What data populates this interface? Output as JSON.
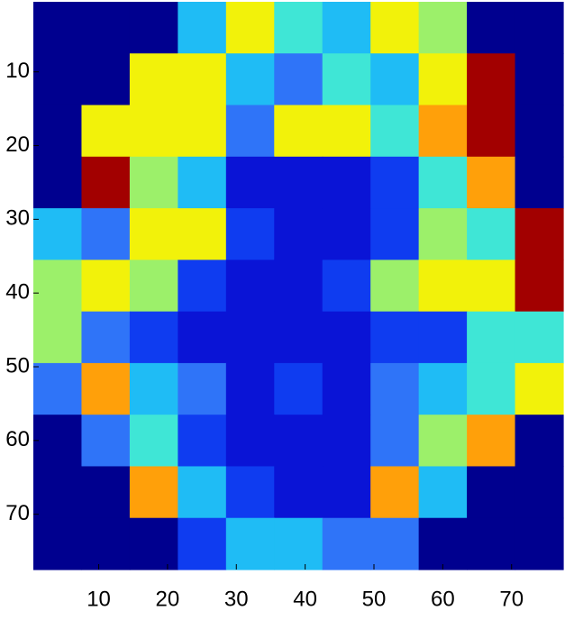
{
  "chart_data": {
    "type": "heatmap",
    "x": [
      4,
      11,
      18,
      25,
      32,
      39,
      46,
      53,
      60,
      67,
      74
    ],
    "y": [
      4,
      11,
      18,
      25,
      32,
      39,
      46,
      53,
      60,
      67,
      74
    ],
    "values": [
      [
        0,
        0,
        0,
        4,
        7,
        5,
        4,
        7,
        6,
        0,
        0
      ],
      [
        0,
        0,
        7,
        7,
        4,
        3,
        5,
        4,
        7,
        10,
        0
      ],
      [
        0,
        7,
        7,
        7,
        3,
        7,
        7,
        5,
        8,
        10,
        0
      ],
      [
        0,
        10,
        6,
        4,
        1,
        1,
        1,
        2,
        5,
        8,
        0
      ],
      [
        4,
        3,
        7,
        7,
        2,
        1,
        1,
        2,
        6,
        5,
        10
      ],
      [
        6,
        7,
        6,
        2,
        1,
        1,
        2,
        6,
        7,
        7,
        10
      ],
      [
        6,
        3,
        2,
        1,
        1,
        1,
        1,
        2,
        2,
        5,
        5
      ],
      [
        3,
        8,
        4,
        3,
        1,
        2,
        1,
        3,
        4,
        5,
        7
      ],
      [
        0,
        3,
        5,
        2,
        1,
        1,
        1,
        3,
        6,
        8,
        0
      ],
      [
        0,
        0,
        8,
        4,
        2,
        1,
        1,
        8,
        4,
        0,
        0
      ],
      [
        0,
        0,
        0,
        2,
        4,
        4,
        3,
        3,
        0,
        0,
        0
      ]
    ],
    "clim": [
      0,
      10
    ],
    "colormap": [
      "#00008f",
      "#0a14d6",
      "#0f3cf0",
      "#2f74f8",
      "#1fbcf5",
      "#3fe6d6",
      "#9cf06a",
      "#f2f20a",
      "#ffa00a",
      "#ff3a00",
      "#a20000"
    ],
    "xlim": [
      0.5,
      77.5
    ],
    "ylim": [
      0.5,
      77.5
    ],
    "y_reversed": true,
    "xticks": [
      10,
      20,
      30,
      40,
      50,
      60,
      70
    ],
    "yticks": [
      10,
      20,
      30,
      40,
      50,
      60,
      70
    ]
  }
}
